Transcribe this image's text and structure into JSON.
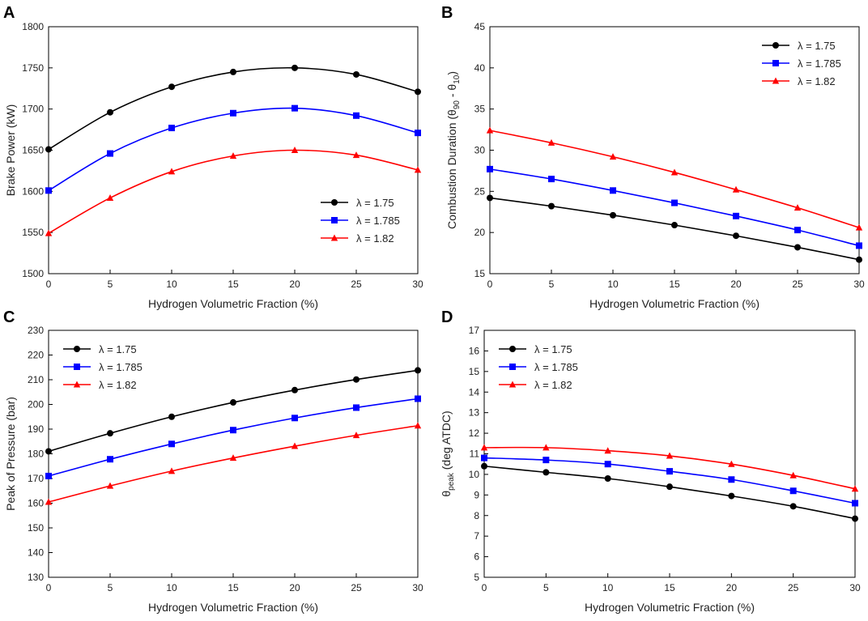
{
  "series_style": [
    {
      "name": "λ = 1.75",
      "color": "#000000",
      "marker": "circle"
    },
    {
      "name": "λ = 1.785",
      "color": "#0000ff",
      "marker": "square"
    },
    {
      "name": "λ = 1.82",
      "color": "#ff0000",
      "marker": "triangle"
    }
  ],
  "chart_data": [
    {
      "panel": "A",
      "type": "line",
      "title": "",
      "xlabel": "Hydrogen Volumetric Fraction (%)",
      "ylabel": "Brake Power (kW)",
      "x": [
        0,
        5,
        10,
        15,
        20,
        25,
        30
      ],
      "xlim": [
        0,
        30
      ],
      "ylim": [
        1500,
        1800
      ],
      "xticks": [
        0,
        5,
        10,
        15,
        20,
        25,
        30
      ],
      "yticks": [
        1500,
        1550,
        1600,
        1650,
        1700,
        1750,
        1800
      ],
      "legend_position": "bottom-right",
      "series": [
        {
          "name": "λ = 1.75",
          "values": [
            1651,
            1696,
            1727,
            1745,
            1750,
            1742,
            1721
          ]
        },
        {
          "name": "λ = 1.785",
          "values": [
            1601,
            1646,
            1677,
            1695,
            1701,
            1692,
            1671
          ]
        },
        {
          "name": "λ = 1.82",
          "values": [
            1549,
            1592,
            1624,
            1643,
            1650,
            1644,
            1626
          ]
        }
      ]
    },
    {
      "panel": "B",
      "type": "line",
      "title": "",
      "xlabel": "Hydrogen Volumetric Fraction (%)",
      "ylabel_main": "Combustion Duration (θ",
      "ylabel_sub1": "90",
      "ylabel_mid": " - θ",
      "ylabel_sub2": "10",
      "ylabel_end": ")",
      "x": [
        0,
        5,
        10,
        15,
        20,
        25,
        30
      ],
      "xlim": [
        0,
        30
      ],
      "ylim": [
        15,
        45
      ],
      "xticks": [
        0,
        5,
        10,
        15,
        20,
        25,
        30
      ],
      "yticks": [
        15,
        20,
        25,
        30,
        35,
        40,
        45
      ],
      "legend_position": "top-right",
      "series": [
        {
          "name": "λ = 1.75",
          "values": [
            24.2,
            23.2,
            22.1,
            20.9,
            19.6,
            18.2,
            16.7
          ]
        },
        {
          "name": "λ = 1.785",
          "values": [
            27.7,
            26.5,
            25.1,
            23.6,
            22.0,
            20.3,
            18.4
          ]
        },
        {
          "name": "λ = 1.82",
          "values": [
            32.4,
            30.9,
            29.2,
            27.3,
            25.2,
            23.0,
            20.6
          ]
        }
      ]
    },
    {
      "panel": "C",
      "type": "line",
      "title": "",
      "xlabel": "Hydrogen Volumetric Fraction (%)",
      "ylabel": "Peak of Pressure (bar)",
      "x": [
        0,
        5,
        10,
        15,
        20,
        25,
        30
      ],
      "xlim": [
        0,
        30
      ],
      "ylim": [
        130,
        230
      ],
      "xticks": [
        0,
        5,
        10,
        15,
        20,
        25,
        30
      ],
      "yticks": [
        130,
        140,
        150,
        160,
        170,
        180,
        190,
        200,
        210,
        220,
        230
      ],
      "legend_position": "top-left",
      "series": [
        {
          "name": "λ = 1.75",
          "values": [
            181.0,
            188.3,
            195.0,
            200.8,
            205.8,
            210.1,
            213.8
          ]
        },
        {
          "name": "λ = 1.785",
          "values": [
            171.0,
            177.8,
            184.0,
            189.6,
            194.5,
            198.7,
            202.3
          ]
        },
        {
          "name": "λ = 1.82",
          "values": [
            160.5,
            167.0,
            173.0,
            178.3,
            183.1,
            187.5,
            191.4
          ]
        }
      ]
    },
    {
      "panel": "D",
      "type": "line",
      "title": "",
      "xlabel": "Hydrogen Volumetric Fraction (%)",
      "ylabel_main": "θ",
      "ylabel_sub1": "peak",
      "ylabel_end": " (deg ATDC)",
      "x": [
        0,
        5,
        10,
        15,
        20,
        25,
        30
      ],
      "xlim": [
        0,
        30
      ],
      "ylim": [
        5,
        17
      ],
      "xticks": [
        0,
        5,
        10,
        15,
        20,
        25,
        30
      ],
      "yticks": [
        5,
        6,
        7,
        8,
        9,
        10,
        11,
        12,
        13,
        14,
        15,
        16,
        17
      ],
      "legend_position": "top-left",
      "series": [
        {
          "name": "λ = 1.75",
          "values": [
            10.4,
            10.1,
            9.8,
            9.4,
            8.95,
            8.45,
            7.85
          ]
        },
        {
          "name": "λ = 1.785",
          "values": [
            10.8,
            10.7,
            10.5,
            10.15,
            9.75,
            9.2,
            8.6
          ]
        },
        {
          "name": "λ = 1.82",
          "values": [
            11.3,
            11.3,
            11.15,
            10.9,
            10.5,
            9.95,
            9.3
          ]
        }
      ]
    }
  ]
}
